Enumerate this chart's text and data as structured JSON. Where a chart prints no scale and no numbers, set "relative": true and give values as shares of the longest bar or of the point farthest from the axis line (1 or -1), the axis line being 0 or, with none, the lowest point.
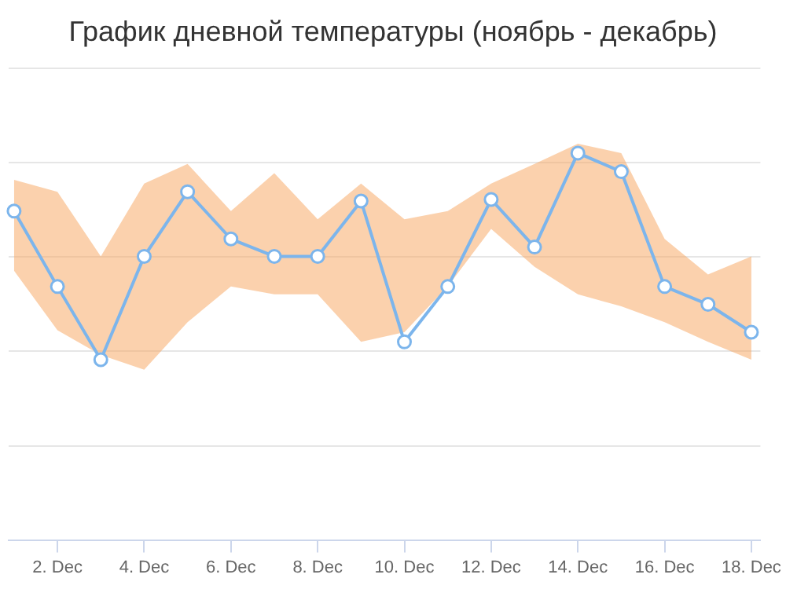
{
  "chart_data": {
    "type": "line",
    "title": "График дневной температуры (ноябрь - декабрь)",
    "relative": true,
    "grid": "y",
    "legend": false,
    "marker": "circle",
    "line_style": "solid",
    "xlim": [
      "--11-30T21:00",
      "--12-18T05:00"
    ],
    "xticks": [
      {
        "value": "--12-02",
        "label": "2. Dec"
      },
      {
        "value": "--12-04",
        "label": "4. Dec"
      },
      {
        "value": "--12-06",
        "label": "6. Dec"
      },
      {
        "value": "--12-08",
        "label": "8. Dec"
      },
      {
        "value": "--12-10",
        "label": "10. Dec"
      },
      {
        "value": "--12-12",
        "label": "12. Dec"
      },
      {
        "value": "--12-14",
        "label": "14. Dec"
      },
      {
        "value": "--12-16",
        "label": "16. Dec"
      },
      {
        "value": "--12-18",
        "label": "18. Dec"
      }
    ],
    "x": [
      "--12-01",
      "--12-02",
      "--12-03",
      "--12-04",
      "--12-05",
      "--12-06",
      "--12-07",
      "--12-08",
      "--12-09",
      "--12-10",
      "--12-11",
      "--12-12",
      "--12-13",
      "--12-14",
      "--12-15",
      "--12-16",
      "--12-17",
      "--12-18"
    ],
    "series": [
      {
        "color": "#7cb5ec",
        "values": [
          0.85,
          0.655,
          0.466,
          0.733,
          0.9,
          0.778,
          0.733,
          0.733,
          0.876,
          0.512,
          0.655,
          0.88,
          0.757,
          1,
          0.952,
          0.655,
          0.609,
          0.537
        ],
        "lower": [
          0.696,
          0.542,
          0.478,
          0.44,
          0.563,
          0.655,
          0.635,
          0.635,
          0.512,
          0.537,
          0.655,
          0.804,
          0.706,
          0.635,
          0.604,
          0.563,
          0.512,
          0.466
        ],
        "upper": [
          0.931,
          0.9,
          0.733,
          0.921,
          0.972,
          0.85,
          0.948,
          0.829,
          0.921,
          0.829,
          0.85,
          0.921,
          0.972,
          1.024,
          1,
          0.778,
          0.686,
          0.733
        ]
      }
    ]
  }
}
